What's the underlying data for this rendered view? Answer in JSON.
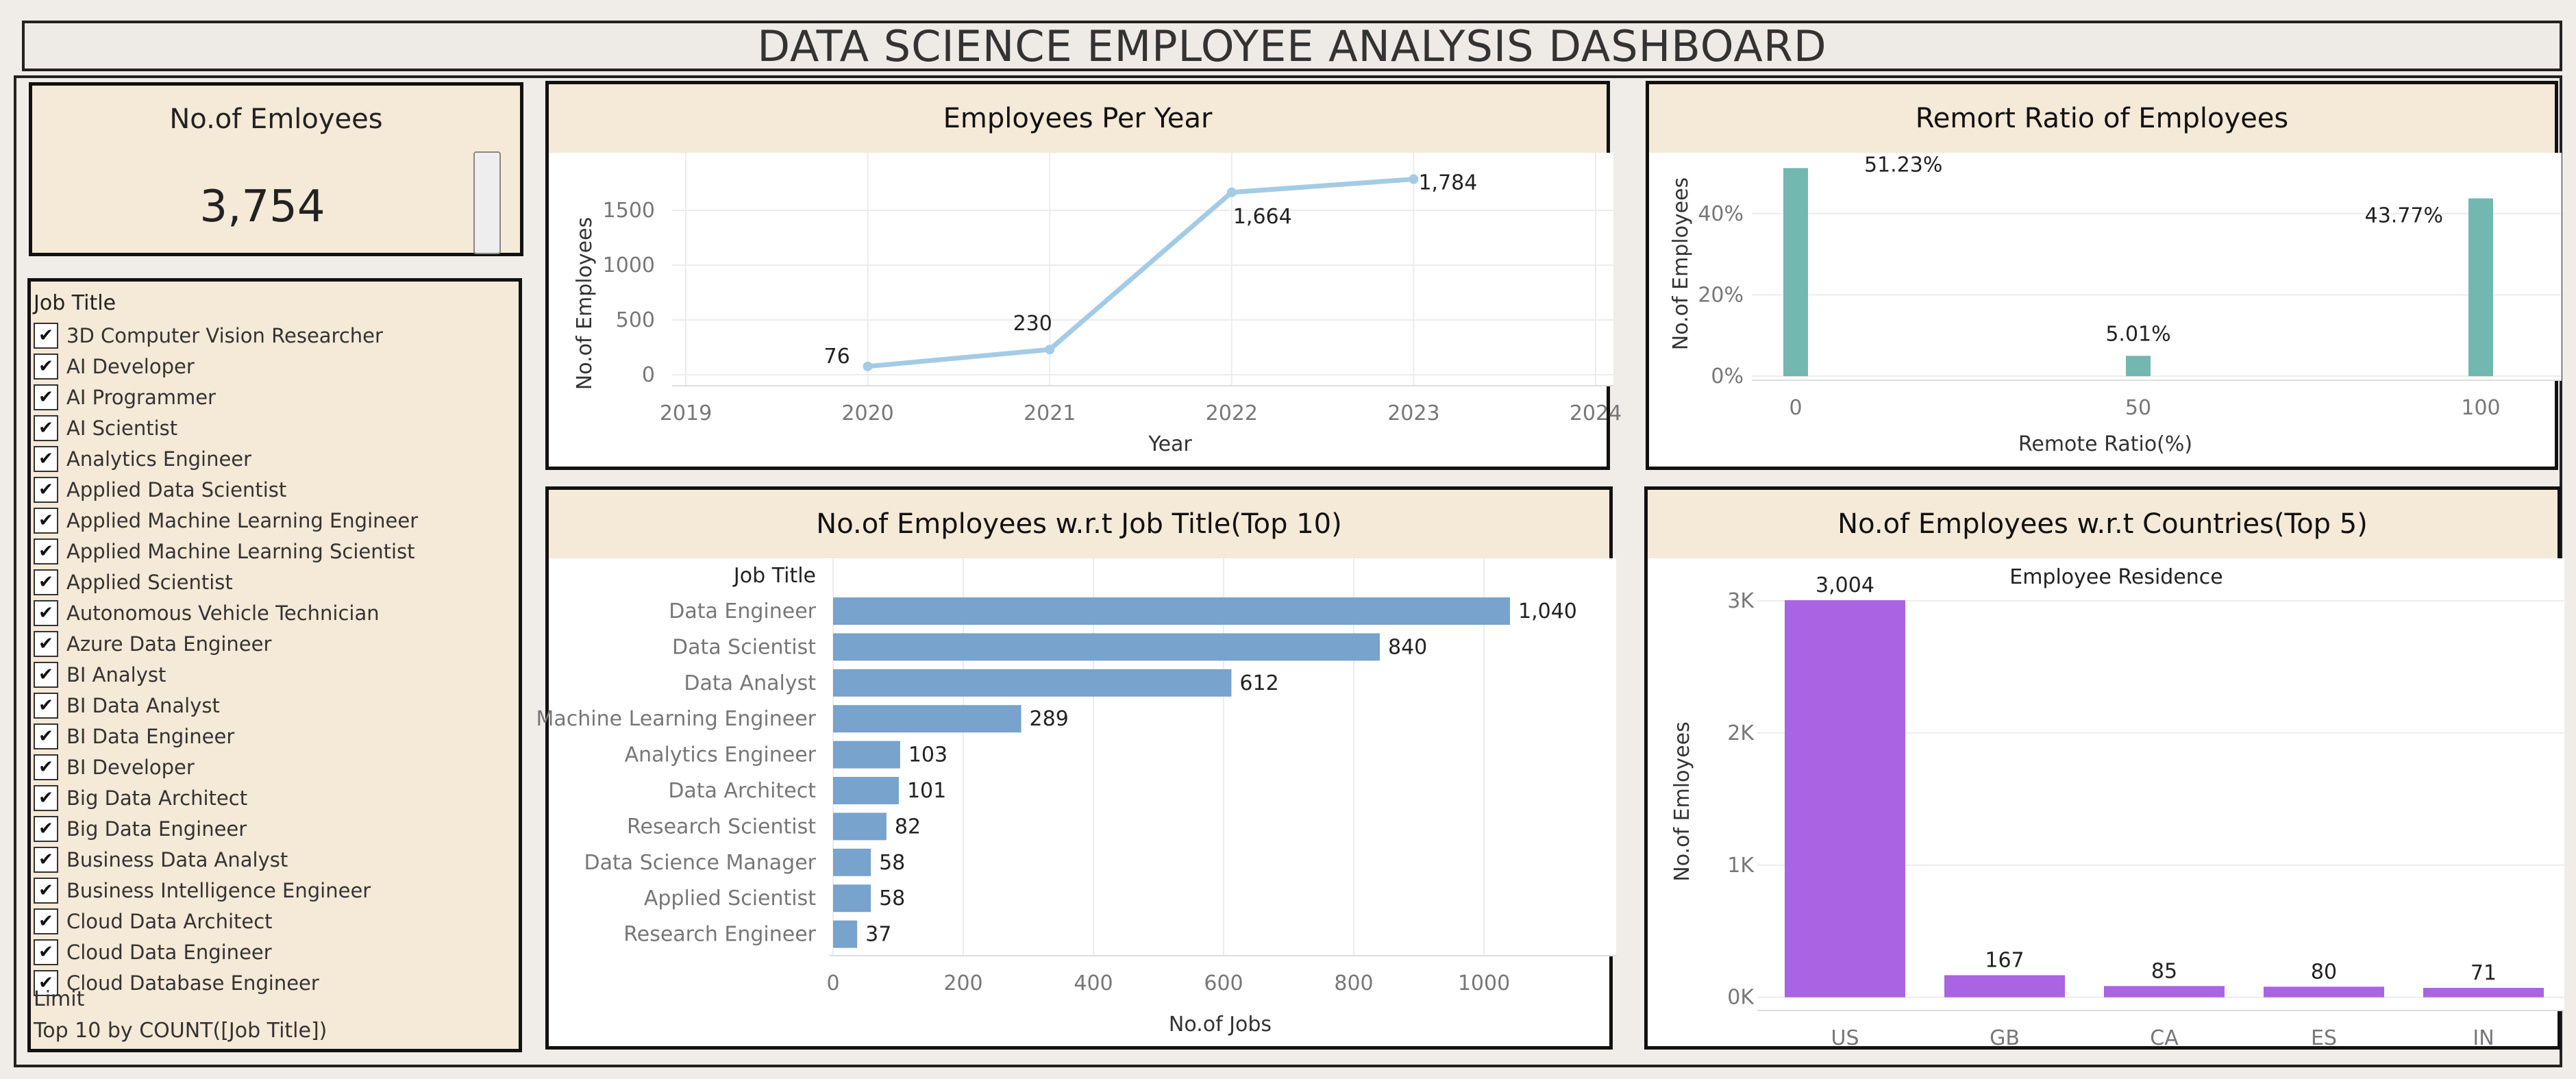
{
  "dashboard": {
    "title": "DATA SCIENCE EMPLOYEE ANALYSIS DASHBOARD"
  },
  "kpi": {
    "title": "No.of Emloyees",
    "value": "3,754"
  },
  "filter": {
    "title": "Job Title",
    "check": "✔",
    "items": [
      "3D Computer Vision Researcher",
      "AI Developer",
      "AI Programmer",
      "AI Scientist",
      "Analytics Engineer",
      "Applied Data Scientist",
      "Applied Machine Learning Engineer",
      "Applied Machine Learning Scientist",
      "Applied Scientist",
      "Autonomous Vehicle Technician",
      "Azure Data Engineer",
      "BI Analyst",
      "BI Data Analyst",
      "BI Data Engineer",
      "BI Developer",
      "Big Data Architect",
      "Big Data Engineer",
      "Business Data Analyst",
      "Business Intelligence Engineer",
      "Cloud Data Architect",
      "Cloud Data Engineer",
      "Cloud Database Engineer"
    ],
    "limit_label": "Limit",
    "limit_value": "Top 10 by COUNT([Job Title])"
  },
  "chart_data": [
    {
      "id": "per_year",
      "type": "line",
      "title": "Employees Per Year",
      "xlabel": "Year",
      "ylabel": "No.of Employees",
      "x_ticks": [
        "2019",
        "2020",
        "2021",
        "2022",
        "2023",
        "2024"
      ],
      "x_range": [
        2019,
        2024
      ],
      "y_ticks": [
        "0",
        "500",
        "1000",
        "1500"
      ],
      "y_range": [
        -100,
        1900
      ],
      "x": [
        2020,
        2021,
        2022,
        2023
      ],
      "values": [
        76,
        230,
        1664,
        1784
      ],
      "data_labels": [
        "76",
        "230",
        "1,664",
        "1,784"
      ],
      "color": "#a3cbe6"
    },
    {
      "id": "remote",
      "type": "bar",
      "title": "Remort Ratio of Employees",
      "xlabel": "Remote Ratio(%)",
      "ylabel": "No.of Employees",
      "categories": [
        "0",
        "50",
        "100"
      ],
      "values": [
        51.23,
        5.01,
        43.77
      ],
      "data_labels": [
        "51.23%",
        "5.01%",
        "43.77%"
      ],
      "y_ticks": [
        "0%",
        "20%",
        "40%"
      ],
      "y_range": [
        -1,
        55
      ],
      "color": "#72b7b0"
    },
    {
      "id": "jobs",
      "type": "bar",
      "orientation": "horizontal",
      "title": "No.of Employees w.r.t Job Title(Top 10)",
      "xlabel": "No.of Jobs",
      "category_header": "Job Title",
      "categories": [
        "Data Engineer",
        "Data Scientist",
        "Data Analyst",
        "Machine Learning Engineer",
        "Analytics Engineer",
        "Data Architect",
        "Research Scientist",
        "Data Science Manager",
        "Applied Scientist",
        "Research Engineer"
      ],
      "values": [
        1040,
        840,
        612,
        289,
        103,
        101,
        82,
        58,
        58,
        37
      ],
      "data_labels": [
        "1,040",
        "840",
        "612",
        "289",
        "103",
        "101",
        "82",
        "58",
        "58",
        "37"
      ],
      "x_ticks": [
        "0",
        "200",
        "400",
        "600",
        "800",
        "1000"
      ],
      "x_range": [
        0,
        1200
      ],
      "color": "#77a3cc"
    },
    {
      "id": "countries",
      "type": "bar",
      "title": "No.of Employees w.r.t Countries(Top 5)",
      "subtitle": "Employee Residence",
      "ylabel": "No.of Emloyees",
      "categories": [
        "US",
        "GB",
        "CA",
        "ES",
        "IN"
      ],
      "values": [
        3004,
        167,
        85,
        80,
        71
      ],
      "data_labels": [
        "3,004",
        "167",
        "85",
        "80",
        "71"
      ],
      "y_ticks": [
        "0K",
        "1K",
        "2K",
        "3K"
      ],
      "y_range": [
        -100,
        3300
      ],
      "color": "#aa63e2"
    }
  ]
}
